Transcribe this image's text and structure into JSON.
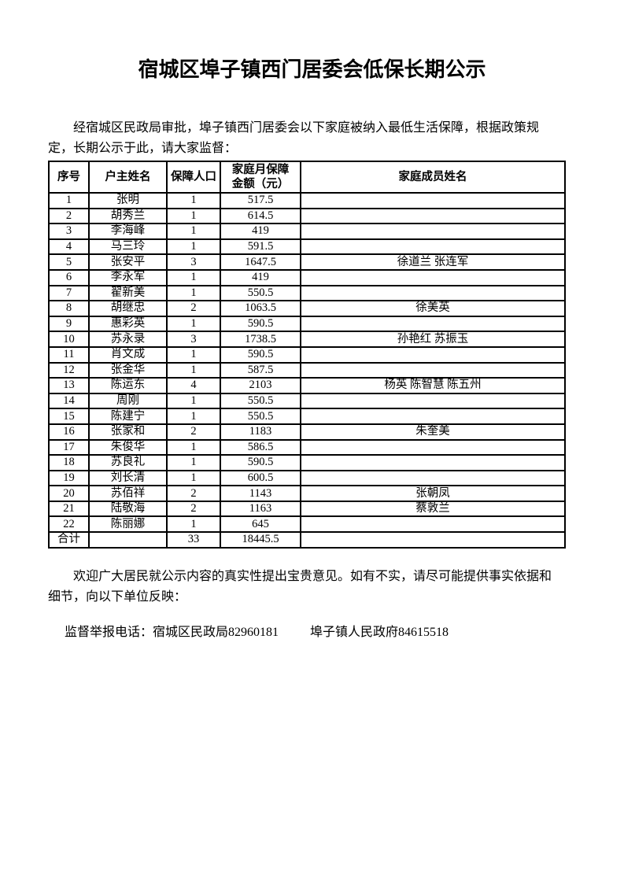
{
  "document": {
    "title": "宿城区埠子镇西门居委会低保长期公示",
    "intro": "　　经宿城区民政局审批，埠子镇西门居委会以下家庭被纳入最低生活保障，根据政策规\n定，长期公示于此，请大家监督：",
    "feedback": "　　欢迎广大居民就公示内容的真实性提出宝贵意见。如有不实，请尽可能提供事实依据和\n细节，向以下单位反映：",
    "hotline_label": "监督举报电话：",
    "hotline_entries": [
      "宿城区民政局82960181",
      "埠子镇人民政府84615518"
    ]
  },
  "table": {
    "headers": [
      "序号",
      "户主姓名",
      "保障人口",
      "家庭月保障\n金额（元）",
      "家庭成员姓名"
    ],
    "rows": [
      [
        "1",
        "张明",
        "1",
        "517.5",
        ""
      ],
      [
        "2",
        "胡秀兰",
        "1",
        "614.5",
        ""
      ],
      [
        "3",
        "李海峰",
        "1",
        "419",
        ""
      ],
      [
        "4",
        "马三玲",
        "1",
        "591.5",
        ""
      ],
      [
        "5",
        "张安平",
        "3",
        "1647.5",
        "徐道兰 张连军"
      ],
      [
        "6",
        "李永军",
        "1",
        "419",
        ""
      ],
      [
        "7",
        "翟新美",
        "1",
        "550.5",
        ""
      ],
      [
        "8",
        "胡继忠",
        "2",
        "1063.5",
        "徐美英"
      ],
      [
        "9",
        "惠彩英",
        "1",
        "590.5",
        ""
      ],
      [
        "10",
        "苏永录",
        "3",
        "1738.5",
        "孙艳红 苏振玉"
      ],
      [
        "11",
        "肖文成",
        "1",
        "590.5",
        ""
      ],
      [
        "12",
        "张金华",
        "1",
        "587.5",
        ""
      ],
      [
        "13",
        "陈运东",
        "4",
        "2103",
        "杨英 陈智慧 陈五州"
      ],
      [
        "14",
        "周刚",
        "1",
        "550.5",
        ""
      ],
      [
        "15",
        "陈建宁",
        "1",
        "550.5",
        ""
      ],
      [
        "16",
        "张家和",
        "2",
        "1183",
        "朱奎美"
      ],
      [
        "17",
        "朱俊华",
        "1",
        "586.5",
        ""
      ],
      [
        "18",
        "苏良礼",
        "1",
        "590.5",
        ""
      ],
      [
        "19",
        "刘长清",
        "1",
        "600.5",
        ""
      ],
      [
        "20",
        "苏佰祥",
        "2",
        "1143",
        "张朝凤"
      ],
      [
        "21",
        "陆敬海",
        "2",
        "1163",
        "蔡敦兰"
      ],
      [
        "22",
        "陈丽娜",
        "1",
        "645",
        ""
      ]
    ],
    "total_row": [
      "合计",
      "",
      "33",
      "18445.5",
      ""
    ]
  }
}
